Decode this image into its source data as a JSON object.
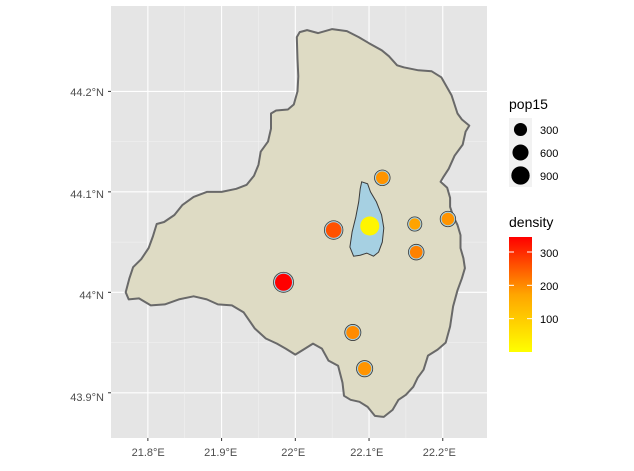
{
  "chart_data": {
    "type": "scatter",
    "x_ticks": [
      "21.8°E",
      "21.9°E",
      "22°E",
      "22.1°E",
      "22.2°E"
    ],
    "y_ticks": [
      "43.9°N",
      "44°N",
      "44.1°N",
      "44.2°N"
    ],
    "xlim": [
      21.75,
      22.26
    ],
    "ylim": [
      43.855,
      44.285
    ],
    "grid": true,
    "legend_position": "right",
    "colors": {
      "panel": "#e5e5e5",
      "grid": "#ffffff",
      "region_fill": "#dedbc4",
      "region_stroke": "#696969",
      "settlement_fill": "#a6d0e2",
      "low": "#ffff00",
      "high": "#ff0000"
    },
    "size_legend": {
      "title": "pop15",
      "labels": [
        "300",
        "600",
        "900"
      ],
      "values": [
        300,
        600,
        900
      ]
    },
    "color_legend": {
      "title": "density",
      "labels": [
        "100",
        "200",
        "300"
      ],
      "values": [
        100,
        200,
        300
      ],
      "range": [
        0,
        345
      ]
    },
    "boundary": [
      [
        22.002,
        44.254
      ],
      [
        22.006,
        44.259
      ],
      [
        22.016,
        44.261
      ],
      [
        22.031,
        44.258
      ],
      [
        22.05,
        44.262
      ],
      [
        22.07,
        44.26
      ],
      [
        22.086,
        44.254
      ],
      [
        22.1,
        44.248
      ],
      [
        22.117,
        44.241
      ],
      [
        22.127,
        44.235
      ],
      [
        22.138,
        44.226
      ],
      [
        22.147,
        44.224
      ],
      [
        22.167,
        44.221
      ],
      [
        22.185,
        44.22
      ],
      [
        22.198,
        44.214
      ],
      [
        22.212,
        44.196
      ],
      [
        22.22,
        44.178
      ],
      [
        22.226,
        44.172
      ],
      [
        22.236,
        44.166
      ],
      [
        22.231,
        44.16
      ],
      [
        22.227,
        44.147
      ],
      [
        22.216,
        44.136
      ],
      [
        22.208,
        44.123
      ],
      [
        22.201,
        44.115
      ],
      [
        22.197,
        44.11
      ],
      [
        22.206,
        44.104
      ],
      [
        22.21,
        44.094
      ],
      [
        22.21,
        44.085
      ],
      [
        22.214,
        44.076
      ],
      [
        22.22,
        44.067
      ],
      [
        22.224,
        44.057
      ],
      [
        22.224,
        44.044
      ],
      [
        22.228,
        44.034
      ],
      [
        22.23,
        44.024
      ],
      [
        22.226,
        44.014
      ],
      [
        22.22,
        44.002
      ],
      [
        22.214,
        43.986
      ],
      [
        22.21,
        43.966
      ],
      [
        22.204,
        43.95
      ],
      [
        22.193,
        43.943
      ],
      [
        22.18,
        43.937
      ],
      [
        22.174,
        43.923
      ],
      [
        22.166,
        43.915
      ],
      [
        22.16,
        43.906
      ],
      [
        22.15,
        43.898
      ],
      [
        22.14,
        43.893
      ],
      [
        22.132,
        43.883
      ],
      [
        22.12,
        43.876
      ],
      [
        22.108,
        43.877
      ],
      [
        22.098,
        43.886
      ],
      [
        22.087,
        43.891
      ],
      [
        22.075,
        43.893
      ],
      [
        22.066,
        43.897
      ],
      [
        22.064,
        43.91
      ],
      [
        22.058,
        43.927
      ],
      [
        22.045,
        43.932
      ],
      [
        22.036,
        43.944
      ],
      [
        22.024,
        43.949
      ],
      [
        22.011,
        43.943
      ],
      [
        22.0,
        43.938
      ],
      [
        21.987,
        43.944
      ],
      [
        21.975,
        43.949
      ],
      [
        21.96,
        43.954
      ],
      [
        21.945,
        43.964
      ],
      [
        21.93,
        43.98
      ],
      [
        21.914,
        43.987
      ],
      [
        21.895,
        43.988
      ],
      [
        21.88,
        43.993
      ],
      [
        21.862,
        43.996
      ],
      [
        21.842,
        43.993
      ],
      [
        21.823,
        43.988
      ],
      [
        21.804,
        43.987
      ],
      [
        21.788,
        43.994
      ],
      [
        21.774,
        43.993
      ],
      [
        21.77,
        44.0
      ],
      [
        21.775,
        44.014
      ],
      [
        21.78,
        44.025
      ],
      [
        21.791,
        44.033
      ],
      [
        21.801,
        44.044
      ],
      [
        21.807,
        44.056
      ],
      [
        21.812,
        44.068
      ],
      [
        21.822,
        44.07
      ],
      [
        21.836,
        44.077
      ],
      [
        21.847,
        44.087
      ],
      [
        21.862,
        44.095
      ],
      [
        21.88,
        44.1
      ],
      [
        21.9,
        44.1
      ],
      [
        21.92,
        44.103
      ],
      [
        21.934,
        44.107
      ],
      [
        21.944,
        44.116
      ],
      [
        21.95,
        44.127
      ],
      [
        21.953,
        44.14
      ],
      [
        21.963,
        44.15
      ],
      [
        21.967,
        44.163
      ],
      [
        21.967,
        44.178
      ],
      [
        21.974,
        44.181
      ],
      [
        21.99,
        44.182
      ],
      [
        21.998,
        44.187
      ],
      [
        22.003,
        44.2
      ],
      [
        22.004,
        44.215
      ],
      [
        22.003,
        44.232
      ],
      [
        22.002,
        44.254
      ]
    ],
    "settlement": [
      [
        22.09,
        44.11
      ],
      [
        22.098,
        44.108
      ],
      [
        22.102,
        44.1
      ],
      [
        22.11,
        44.09
      ],
      [
        22.117,
        44.077
      ],
      [
        22.12,
        44.064
      ],
      [
        22.118,
        44.05
      ],
      [
        22.113,
        44.04
      ],
      [
        22.106,
        44.036
      ],
      [
        22.097,
        44.039
      ],
      [
        22.088,
        44.037
      ],
      [
        22.079,
        44.036
      ],
      [
        22.074,
        44.045
      ],
      [
        22.077,
        44.06
      ],
      [
        22.082,
        44.075
      ],
      [
        22.086,
        44.09
      ],
      [
        22.088,
        44.103
      ],
      [
        22.09,
        44.11
      ]
    ],
    "points": [
      {
        "lon": 22.101,
        "lat": 44.066,
        "pop15": 1000,
        "density": 20
      },
      {
        "lon": 21.984,
        "lat": 44.01,
        "pop15": 720,
        "density": 345
      },
      {
        "lon": 22.052,
        "lat": 44.062,
        "pop15": 540,
        "density": 260
      },
      {
        "lon": 22.118,
        "lat": 44.114,
        "pop15": 260,
        "density": 190
      },
      {
        "lon": 22.207,
        "lat": 44.073,
        "pop15": 250,
        "density": 190
      },
      {
        "lon": 22.164,
        "lat": 44.04,
        "pop15": 260,
        "density": 210
      },
      {
        "lon": 22.162,
        "lat": 44.068,
        "pop15": 160,
        "density": 175
      },
      {
        "lon": 22.078,
        "lat": 43.96,
        "pop15": 300,
        "density": 200
      },
      {
        "lon": 22.094,
        "lat": 43.924,
        "pop15": 310,
        "density": 190
      }
    ]
  }
}
